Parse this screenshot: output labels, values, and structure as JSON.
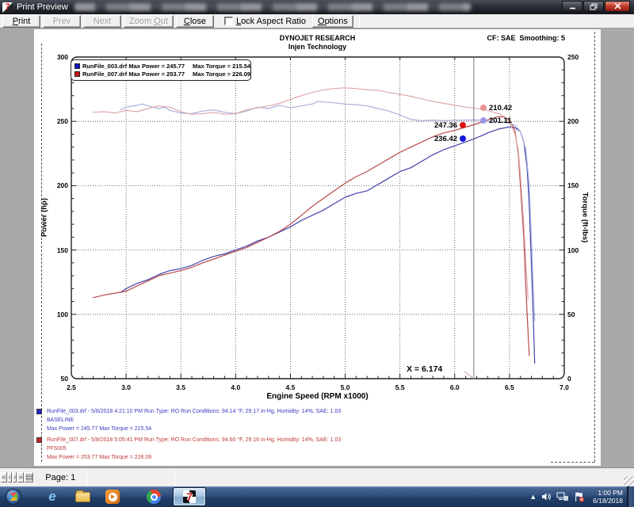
{
  "window": {
    "title": "Print Preview"
  },
  "toolbar": {
    "buttons": [
      {
        "label": "Print",
        "accel": 0,
        "disabled": false
      },
      {
        "label": "Prev",
        "accel": -1,
        "disabled": true
      },
      {
        "label": "Next",
        "accel": -1,
        "disabled": true
      },
      {
        "label": "Zoom Out",
        "accel": 5,
        "disabled": true
      },
      {
        "label": "Close",
        "accel": 0,
        "disabled": false
      }
    ],
    "lock_aspect": {
      "label": "Lock Aspect Ratio",
      "accel": 0,
      "checked": false
    },
    "options": {
      "label": "Options",
      "accel": 0
    }
  },
  "chart_header": {
    "title": "DYNOJET RESEARCH",
    "subtitle": "Injen Technology",
    "cf": "CF: SAE",
    "smoothing": "Smoothing: 5"
  },
  "legend": {
    "rows": [
      {
        "color": "#1414cc",
        "left": "RunFile_003.drf Max Power = 245.77",
        "right": "Max Torque = 215.54"
      },
      {
        "color": "#cc1414",
        "left": "RunFile_007.drf Max Power = 253.77",
        "right": "Max Torque = 226.09"
      }
    ]
  },
  "value_labels": {
    "power_red": {
      "text": "247.36",
      "dot_color": "#dd1414"
    },
    "power_blue": {
      "text": "236.42",
      "dot_color": "#1515e0"
    },
    "torque_red": {
      "text": "210.42",
      "dot_color": "#ea9494"
    },
    "torque_blue": {
      "text": "201.11",
      "dot_color": "#9a9ae8"
    }
  },
  "cursor_label": "X = 6.174",
  "chart_data": {
    "type": "line",
    "cursor_x": 6.174,
    "x_axis": {
      "label": "Engine Speed (RPM x1000)",
      "range": [
        2.5,
        7.0
      ],
      "tick_values": [
        2.5,
        3.0,
        3.5,
        4.0,
        4.5,
        5.0,
        5.5,
        6.0,
        6.5,
        7.0
      ],
      "tick_labels": [
        "2.5",
        "3.0",
        "3.5",
        "4.0",
        "4.5",
        "5.0",
        "5.5",
        "6.0",
        "6.5",
        "7.0"
      ]
    },
    "y_left": {
      "label": "Power (hp)",
      "range": [
        50,
        300
      ],
      "tick_values": [
        300,
        250,
        200,
        150,
        100,
        50
      ],
      "tick_labels": [
        "300",
        "250",
        "200",
        "150",
        "100",
        "50"
      ]
    },
    "y_right": {
      "label": "Torque (ft-lbs)",
      "range": [
        0,
        250
      ],
      "tick_values": [
        250,
        200,
        150,
        100,
        50,
        0
      ],
      "tick_labels": [
        "250",
        "200",
        "150",
        "100",
        "50",
        "0"
      ]
    },
    "grid": {
      "x_major": [
        3.0,
        3.5,
        4.0,
        4.5,
        5.0,
        5.5,
        6.0,
        6.5
      ],
      "y_major_power": [
        250,
        200,
        150,
        100
      ]
    },
    "series": [
      {
        "name": "RunFile_003.drf Power",
        "axis": "power",
        "color": "#4242aa",
        "max": 245.77,
        "points": [
          [
            2.95,
            117
          ],
          [
            3.0,
            120
          ],
          [
            3.1,
            124
          ],
          [
            3.2,
            127
          ],
          [
            3.3,
            131
          ],
          [
            3.4,
            134
          ],
          [
            3.5,
            135.5
          ],
          [
            3.6,
            138
          ],
          [
            3.7,
            142
          ],
          [
            3.8,
            145
          ],
          [
            3.9,
            147
          ],
          [
            4.0,
            150
          ],
          [
            4.1,
            153
          ],
          [
            4.2,
            157
          ],
          [
            4.3,
            160
          ],
          [
            4.4,
            164
          ],
          [
            4.5,
            168
          ],
          [
            4.6,
            173
          ],
          [
            4.7,
            177
          ],
          [
            4.8,
            181
          ],
          [
            4.9,
            186
          ],
          [
            5.0,
            191
          ],
          [
            5.1,
            194
          ],
          [
            5.2,
            196
          ],
          [
            5.3,
            201
          ],
          [
            5.4,
            206
          ],
          [
            5.5,
            211
          ],
          [
            5.6,
            214
          ],
          [
            5.7,
            219
          ],
          [
            5.8,
            224
          ],
          [
            5.9,
            228
          ],
          [
            6.0,
            231
          ],
          [
            6.1,
            234
          ],
          [
            6.174,
            236.42
          ],
          [
            6.25,
            239
          ],
          [
            6.3,
            241
          ],
          [
            6.4,
            244
          ],
          [
            6.5,
            245.77
          ],
          [
            6.55,
            245.2
          ],
          [
            6.6,
            242
          ],
          [
            6.63,
            234
          ],
          [
            6.66,
            215
          ],
          [
            6.68,
            185
          ],
          [
            6.7,
            140
          ],
          [
            6.72,
            90
          ],
          [
            6.73,
            62
          ]
        ]
      },
      {
        "name": "RunFile_007.drf Power",
        "axis": "power",
        "color": "#b84a4a",
        "max": 253.77,
        "points": [
          [
            2.7,
            113
          ],
          [
            2.8,
            115
          ],
          [
            2.9,
            116.5
          ],
          [
            3.0,
            118
          ],
          [
            3.1,
            122
          ],
          [
            3.2,
            126
          ],
          [
            3.3,
            130
          ],
          [
            3.4,
            132
          ],
          [
            3.5,
            134
          ],
          [
            3.6,
            136.5
          ],
          [
            3.7,
            140
          ],
          [
            3.8,
            143
          ],
          [
            3.9,
            146
          ],
          [
            4.0,
            149
          ],
          [
            4.1,
            152
          ],
          [
            4.2,
            156
          ],
          [
            4.3,
            160
          ],
          [
            4.4,
            164.5
          ],
          [
            4.5,
            170
          ],
          [
            4.6,
            177
          ],
          [
            4.7,
            184
          ],
          [
            4.8,
            190
          ],
          [
            4.9,
            196
          ],
          [
            5.0,
            202
          ],
          [
            5.1,
            207
          ],
          [
            5.2,
            211
          ],
          [
            5.3,
            216
          ],
          [
            5.4,
            221
          ],
          [
            5.5,
            226
          ],
          [
            5.6,
            230
          ],
          [
            5.7,
            234
          ],
          [
            5.8,
            238
          ],
          [
            5.9,
            241
          ],
          [
            6.0,
            243
          ],
          [
            6.1,
            245.5
          ],
          [
            6.174,
            247.36
          ],
          [
            6.25,
            249.5
          ],
          [
            6.3,
            251
          ],
          [
            6.4,
            253.77
          ],
          [
            6.45,
            253.4
          ],
          [
            6.5,
            251
          ],
          [
            6.55,
            243
          ],
          [
            6.58,
            225
          ],
          [
            6.6,
            200
          ],
          [
            6.63,
            160
          ],
          [
            6.65,
            120
          ],
          [
            6.67,
            85
          ],
          [
            6.68,
            68
          ]
        ]
      },
      {
        "name": "RunFile_003.drf Torque",
        "axis": "torque",
        "color": "#a9afdd",
        "max": 215.54,
        "points": [
          [
            2.95,
            209
          ],
          [
            3.0,
            211
          ],
          [
            3.1,
            212.5
          ],
          [
            3.15,
            213.5
          ],
          [
            3.2,
            212
          ],
          [
            3.3,
            210
          ],
          [
            3.35,
            211
          ],
          [
            3.4,
            208.5
          ],
          [
            3.5,
            206.5
          ],
          [
            3.6,
            206
          ],
          [
            3.7,
            208
          ],
          [
            3.8,
            209
          ],
          [
            3.9,
            207
          ],
          [
            4.0,
            206
          ],
          [
            4.1,
            208
          ],
          [
            4.2,
            211
          ],
          [
            4.3,
            210
          ],
          [
            4.4,
            212.5
          ],
          [
            4.5,
            210.5
          ],
          [
            4.6,
            212
          ],
          [
            4.7,
            213.5
          ],
          [
            4.75,
            215.54
          ],
          [
            4.8,
            215
          ],
          [
            4.9,
            214.5
          ],
          [
            5.0,
            213.5
          ],
          [
            5.1,
            213
          ],
          [
            5.2,
            212
          ],
          [
            5.3,
            210
          ],
          [
            5.4,
            208
          ],
          [
            5.5,
            205
          ],
          [
            5.6,
            201.5
          ],
          [
            5.7,
            200.5
          ],
          [
            5.8,
            201
          ],
          [
            5.9,
            200.5
          ],
          [
            6.0,
            200.8
          ],
          [
            6.1,
            201
          ],
          [
            6.174,
            201.11
          ],
          [
            6.25,
            201
          ],
          [
            6.3,
            200
          ],
          [
            6.4,
            199.5
          ],
          [
            6.5,
            198.5
          ],
          [
            6.55,
            197
          ],
          [
            6.6,
            192
          ],
          [
            6.65,
            178
          ],
          [
            6.68,
            150
          ],
          [
            6.7,
            110
          ],
          [
            6.72,
            65
          ],
          [
            6.73,
            45
          ]
        ]
      },
      {
        "name": "RunFile_007.drf Torque",
        "axis": "torque",
        "color": "#e0a8a8",
        "max": 226.09,
        "points": [
          [
            2.7,
            207
          ],
          [
            2.8,
            207.5
          ],
          [
            2.9,
            206.5
          ],
          [
            3.0,
            208.5
          ],
          [
            3.1,
            207.5
          ],
          [
            3.2,
            210
          ],
          [
            3.3,
            212
          ],
          [
            3.4,
            211
          ],
          [
            3.5,
            207.5
          ],
          [
            3.6,
            205.5
          ],
          [
            3.7,
            206
          ],
          [
            3.8,
            207
          ],
          [
            3.9,
            205.5
          ],
          [
            4.0,
            206
          ],
          [
            4.1,
            209
          ],
          [
            4.2,
            210.5
          ],
          [
            4.3,
            212
          ],
          [
            4.4,
            214
          ],
          [
            4.5,
            217
          ],
          [
            4.6,
            220
          ],
          [
            4.7,
            222.5
          ],
          [
            4.8,
            224.5
          ],
          [
            4.9,
            225.5
          ],
          [
            5.0,
            226.09
          ],
          [
            5.1,
            225.5
          ],
          [
            5.2,
            224.5
          ],
          [
            5.3,
            224
          ],
          [
            5.4,
            222.5
          ],
          [
            5.5,
            221
          ],
          [
            5.6,
            219.5
          ],
          [
            5.7,
            217.5
          ],
          [
            5.8,
            215.5
          ],
          [
            5.9,
            214
          ],
          [
            6.0,
            212.5
          ],
          [
            6.1,
            211
          ],
          [
            6.174,
            210.42
          ],
          [
            6.25,
            209.5
          ],
          [
            6.3,
            208.5
          ],
          [
            6.4,
            206
          ],
          [
            6.45,
            204
          ],
          [
            6.5,
            199
          ],
          [
            6.55,
            190
          ],
          [
            6.58,
            178
          ],
          [
            6.6,
            158
          ],
          [
            6.63,
            120
          ],
          [
            6.65,
            90
          ],
          [
            6.67,
            62
          ]
        ]
      }
    ]
  },
  "annotations": {
    "runs": [
      {
        "color": "#2222cc",
        "text_color": "#3a3ac0",
        "line1": "RunFile_003.drf - 5/8/2018 4:21:10 PM  Run Type: RO  Run Conditions: 94.14 °F, 29.17 in-Hg,  Humidity:  14%, SAE: 1.03",
        "line2": "BASELINE",
        "line3": "Max Power = 245.77  Max Torque = 215.54"
      },
      {
        "color": "#cc2222",
        "text_color": "#c03a3a",
        "line1": "RunFile_007.drf - 5/8/2018 5:05:41 PM  Run Type: RO  Run Conditions: 94.60 °F, 29.16 in-Hg,  Humidity:  14%, SAE: 1.03",
        "line2": "PF5005",
        "line3": "Max Power = 253.77  Max Torque = 226.09"
      }
    ]
  },
  "status_bar": {
    "nav_buttons": [
      "«",
      "‹",
      "›",
      "»"
    ],
    "preview_icon": "▤",
    "page_label": "Page: 1"
  },
  "taskbar": {
    "clock_time": "1:00 PM",
    "clock_date": "6/18/2018"
  }
}
